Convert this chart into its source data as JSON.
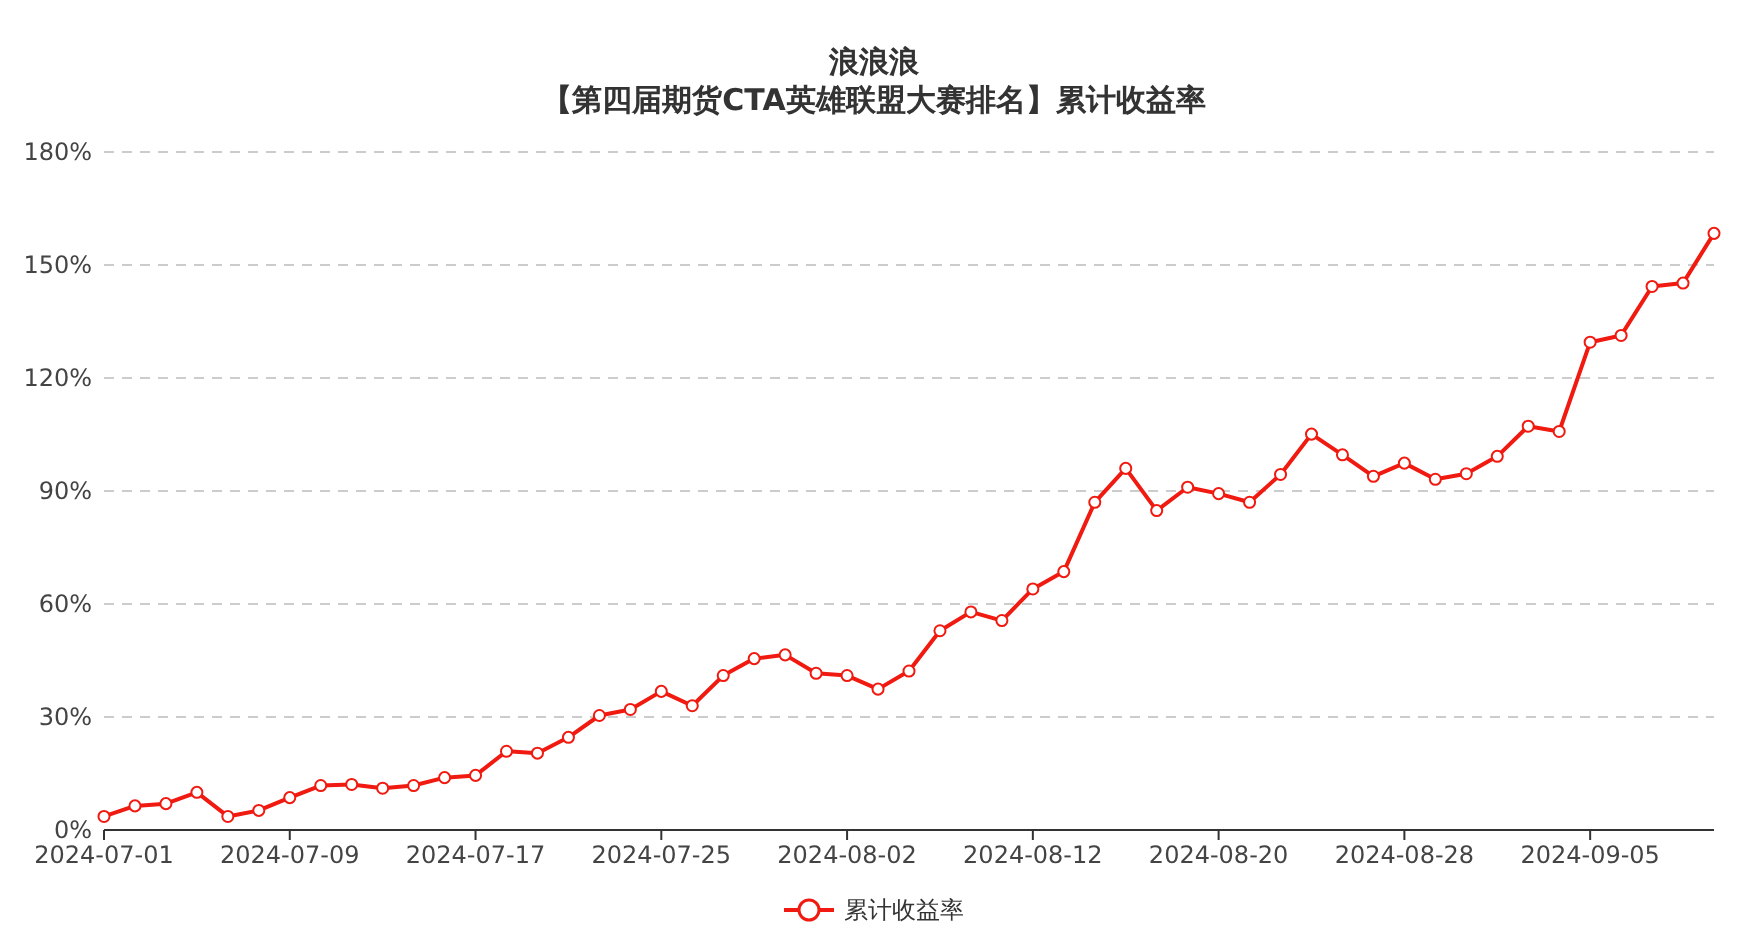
{
  "chart_data": {
    "type": "line",
    "title": "浪浪浪",
    "subtitle": "【第四届期货CTA英雄联盟大赛排名】累计收益率",
    "categories": [
      "2024-07-01",
      null,
      null,
      null,
      null,
      null,
      "2024-07-09",
      null,
      null,
      null,
      null,
      null,
      "2024-07-17",
      null,
      null,
      null,
      null,
      null,
      "2024-07-25",
      null,
      null,
      null,
      null,
      null,
      "2024-08-02",
      null,
      null,
      null,
      null,
      null,
      "2024-08-12",
      null,
      null,
      null,
      null,
      null,
      "2024-08-20",
      null,
      null,
      null,
      null,
      null,
      "2024-08-28",
      null,
      null,
      null,
      null,
      null,
      "2024-09-05",
      null,
      null,
      null,
      null
    ],
    "series": [
      {
        "name": "累计收益率",
        "color": "#f01a10",
        "values": [
          3.6,
          6.4,
          7.0,
          10.0,
          3.6,
          5.2,
          8.6,
          11.8,
          12.1,
          11.1,
          11.8,
          13.9,
          14.5,
          20.9,
          20.4,
          24.6,
          30.4,
          32.0,
          36.8,
          33.0,
          41.0,
          45.5,
          46.5,
          41.6,
          41.0,
          37.4,
          42.2,
          52.9,
          57.9,
          55.6,
          64.0,
          68.6,
          87.0,
          96.0,
          84.8,
          91.0,
          89.3,
          87.0,
          94.4,
          105.1,
          99.6,
          93.9,
          97.4,
          93.1,
          94.6,
          99.2,
          107.2,
          105.8,
          129.5,
          131.3,
          144.3,
          145.2,
          158.4
        ]
      }
    ],
    "ylim": [
      0,
      180
    ],
    "yticks": [
      {
        "value": 0,
        "label": "0%"
      },
      {
        "value": 30,
        "label": "30%"
      },
      {
        "value": 60,
        "label": "60%"
      },
      {
        "value": 90,
        "label": "90%"
      },
      {
        "value": 120,
        "label": "120%"
      },
      {
        "value": 150,
        "label": "150%"
      },
      {
        "value": 180,
        "label": "180%"
      }
    ],
    "grid": "y",
    "legend": "bottom",
    "marker": "circle",
    "line_style": "solid"
  }
}
